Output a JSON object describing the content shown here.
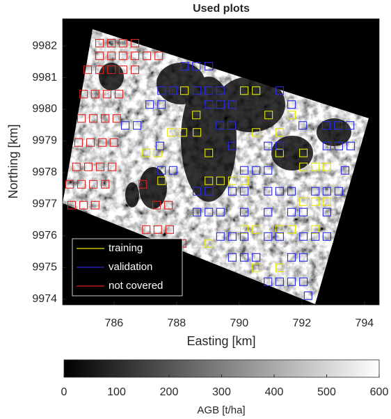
{
  "chart_data": {
    "type": "scatter",
    "title": "Used plots",
    "xlabel": "Easting [km]",
    "ylabel": "Northing [km]",
    "xlim": [
      784.36,
      794.47
    ],
    "ylim": [
      9973.82,
      9982.86
    ],
    "xticks": [
      786,
      788,
      790,
      792,
      794
    ],
    "yticks": [
      9974,
      9975,
      9976,
      9977,
      9978,
      9979,
      9980,
      9981,
      9982
    ],
    "legend": "lower left",
    "series": [
      {
        "name": "training",
        "color": "#e6e600",
        "x": [
          788.25,
          790.16,
          790.54,
          788.63,
          790.94,
          791.67,
          787.83,
          788.2,
          788.65,
          790.54,
          791.29,
          787.03,
          787.4,
          789.03,
          791.29,
          792.05,
          792.05,
          792.43,
          792.8,
          787.52,
          789.03,
          789.4,
          789.78,
          790.16,
          792.05,
          792.43,
          792.8,
          790.16,
          790.54,
          791.29,
          791.67,
          792.43,
          789.03,
          790.54,
          791.29
        ],
        "y": [
          9980.59,
          9980.59,
          9980.59,
          9979.82,
          9979.82,
          9979.82,
          9979.27,
          9979.27,
          9979.27,
          9979.27,
          9979.27,
          9978.62,
          9978.62,
          9978.62,
          9978.62,
          9978.62,
          9978.18,
          9978.18,
          9978.18,
          9977.74,
          9977.74,
          9977.74,
          9977.74,
          9977.74,
          9977.08,
          9977.08,
          9977.08,
          9976.2,
          9976.2,
          9976.2,
          9976.2,
          9976.2,
          9975.76,
          9974.99,
          9974.99
        ]
      },
      {
        "name": "validation",
        "color": "#2a2ae0",
        "x": [
          788.25,
          788.63,
          789.03,
          787.52,
          787.89,
          788.65,
          789.03,
          789.4,
          791.29,
          787.14,
          787.52,
          789.03,
          789.4,
          789.78,
          791.67,
          786.36,
          786.74,
          789.38,
          789.76,
          792.03,
          792.78,
          793.16,
          793.54,
          787.47,
          789.78,
          790.92,
          791.29,
          792.8,
          793.18,
          793.56,
          787.52,
          787.89,
          790.16,
          790.54,
          790.92,
          793.38,
          788.65,
          789.03,
          789.78,
          790.16,
          790.92,
          791.29,
          791.67,
          792.43,
          792.8,
          793.18,
          788.65,
          789.03,
          789.4,
          790.16,
          790.92,
          791.67,
          792.05,
          792.8,
          789.4,
          789.78,
          790.16,
          790.92,
          791.29,
          792.05,
          792.43,
          792.8,
          789.78,
          790.16,
          790.54,
          791.67,
          792.05,
          790.92,
          791.29,
          791.67,
          792.05,
          792.2
        ],
        "y": [
          9981.36,
          9981.36,
          9981.36,
          9980.59,
          9980.59,
          9980.59,
          9980.59,
          9980.59,
          9980.59,
          9980.15,
          9980.15,
          9980.15,
          9980.15,
          9980.15,
          9980.15,
          9979.49,
          9979.49,
          9979.49,
          9979.49,
          9979.49,
          9979.49,
          9979.49,
          9979.49,
          9978.84,
          9978.84,
          9978.84,
          9978.84,
          9978.84,
          9978.84,
          9978.84,
          9978.07,
          9978.07,
          9978.07,
          9978.07,
          9978.07,
          9978.07,
          9977.41,
          9977.41,
          9977.41,
          9977.41,
          9977.41,
          9977.41,
          9977.41,
          9977.41,
          9977.41,
          9977.41,
          9976.75,
          9976.75,
          9976.75,
          9976.75,
          9976.75,
          9976.75,
          9976.75,
          9976.75,
          9975.98,
          9975.98,
          9975.98,
          9975.98,
          9975.98,
          9975.98,
          9975.98,
          9975.98,
          9975.32,
          9975.32,
          9975.32,
          9975.32,
          9975.32,
          9974.55,
          9974.55,
          9974.55,
          9974.55,
          9974.11
        ]
      },
      {
        "name": "not covered",
        "color": "#e02020",
        "x": [
          785.54,
          785.92,
          786.29,
          786.67,
          785.54,
          785.92,
          786.29,
          786.67,
          787.05,
          787.43,
          785.16,
          785.54,
          785.92,
          786.29,
          786.67,
          785.03,
          785.4,
          785.78,
          786.16,
          784.96,
          785.34,
          785.72,
          786.09,
          784.87,
          785.25,
          785.63,
          786.0,
          784.8,
          785.18,
          785.56,
          785.94,
          784.58,
          784.96,
          785.34,
          785.72,
          786.92,
          784.65,
          785.03,
          785.4,
          787.36,
          787.74,
          787.03,
          787.4,
          787.78,
          788.18
        ],
        "y": [
          9982.09,
          9982.09,
          9982.09,
          9982.09,
          9981.69,
          9981.69,
          9981.69,
          9981.69,
          9981.69,
          9981.69,
          9981.25,
          9981.25,
          9981.25,
          9981.25,
          9981.25,
          9980.48,
          9980.48,
          9980.48,
          9980.48,
          9979.71,
          9979.71,
          9979.71,
          9979.71,
          9978.95,
          9978.95,
          9978.95,
          9978.95,
          9978.18,
          9978.18,
          9978.18,
          9978.18,
          9977.63,
          9977.63,
          9977.63,
          9977.63,
          9977.63,
          9976.97,
          9976.97,
          9976.97,
          9976.97,
          9976.97,
          9976.2,
          9976.2,
          9976.2,
          9975.76
        ]
      }
    ],
    "colorbar": {
      "label": "AGB [t/ha]",
      "lim": [
        0,
        600
      ],
      "ticks": [
        0,
        100,
        200,
        300,
        400,
        500,
        600
      ]
    }
  }
}
